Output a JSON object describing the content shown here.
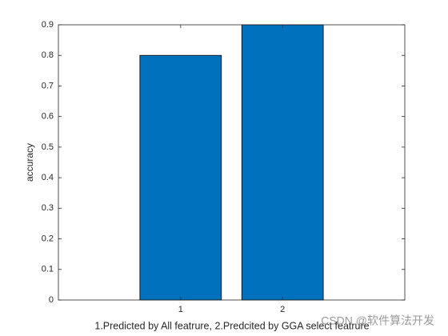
{
  "chart_data": {
    "type": "bar",
    "x": [
      1,
      2
    ],
    "values": [
      0.8,
      0.9
    ],
    "color": "#0072bd",
    "xlim": [
      -0.2,
      3.2
    ],
    "xticks": [
      1,
      2
    ],
    "ylim": [
      0,
      0.9
    ],
    "yticks": [
      0,
      0.1,
      0.2,
      0.3,
      0.4,
      0.5,
      0.6,
      0.7,
      0.8,
      0.9
    ],
    "ylabel": "accuracy",
    "xlabel": "1.Predicted by All featrure,  2.Predcited by GGA select featrure",
    "watermark": "CSDN @软件算法开发"
  }
}
